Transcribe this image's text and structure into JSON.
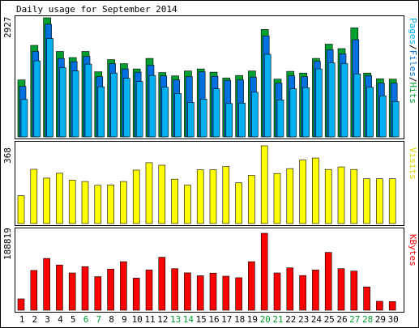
{
  "chart_data": [
    {
      "type": "bar",
      "title": "Daily usage for September 2014",
      "categories": [
        "1",
        "2",
        "3",
        "4",
        "5",
        "6",
        "7",
        "8",
        "9",
        "10",
        "11",
        "12",
        "13",
        "14",
        "15",
        "16",
        "17",
        "18",
        "19",
        "20",
        "21",
        "22",
        "23",
        "24",
        "25",
        "26",
        "27",
        "28",
        "29",
        "30"
      ],
      "weekend_days": [
        "6",
        "7",
        "13",
        "14",
        "20",
        "21",
        "27",
        "28"
      ],
      "ylabel": "Pages/Files/Hits",
      "ylabel_parts": [
        "Pages",
        "Files",
        "Hits"
      ],
      "ymax_label": "2927",
      "ylim": [
        0,
        2927
      ],
      "series": [
        {
          "name": "Hits",
          "color": "#00a030",
          "values": [
            1400,
            2250,
            2927,
            2100,
            1950,
            2100,
            1600,
            1900,
            1800,
            1670,
            1930,
            1580,
            1500,
            1620,
            1670,
            1590,
            1450,
            1510,
            1620,
            2640,
            1420,
            1610,
            1570,
            1930,
            2280,
            2170,
            2680,
            1570,
            1430,
            1420
          ]
        },
        {
          "name": "Files",
          "color": "#0070e0",
          "values": [
            1240,
            2100,
            2770,
            1930,
            1850,
            1980,
            1480,
            1800,
            1670,
            1590,
            1760,
            1500,
            1400,
            1480,
            1600,
            1490,
            1390,
            1400,
            1470,
            2480,
            1320,
            1500,
            1480,
            1860,
            2140,
            2040,
            2390,
            1510,
            1320,
            1320
          ]
        },
        {
          "name": "Pages",
          "color": "#00b0f0",
          "values": [
            920,
            1870,
            2420,
            1700,
            1620,
            1790,
            1230,
            1570,
            1440,
            1360,
            1510,
            1220,
            1070,
            850,
            930,
            1180,
            820,
            830,
            1100,
            2030,
            910,
            1180,
            1210,
            1670,
            1820,
            1800,
            1550,
            1220,
            1010,
            870
          ]
        }
      ]
    },
    {
      "type": "bar",
      "ylabel": "Visits",
      "ymax_label": "368",
      "ylim": [
        0,
        368
      ],
      "series": [
        {
          "name": "Visits",
          "color": "#ffff00",
          "values": [
            132,
            257,
            215,
            238,
            205,
            199,
            181,
            183,
            199,
            253,
            288,
            276,
            210,
            182,
            254,
            254,
            270,
            193,
            228,
            368,
            237,
            260,
            300,
            310,
            256,
            268,
            256,
            212,
            212,
            212
          ]
        }
      ]
    },
    {
      "type": "bar",
      "ylabel": "KBytes",
      "ymax_label": "188819",
      "ylim": [
        0,
        188819
      ],
      "series": [
        {
          "name": "KBytes",
          "color": "#ff0000",
          "values": [
            27800,
            97500,
            127000,
            111000,
            91400,
            107000,
            82300,
            101000,
            119000,
            78700,
            99000,
            130000,
            102000,
            91700,
            84500,
            91100,
            83500,
            79700,
            119000,
            188819,
            91400,
            104000,
            85000,
            98500,
            142000,
            102000,
            96000,
            57000,
            21900,
            21100
          ]
        }
      ]
    }
  ]
}
